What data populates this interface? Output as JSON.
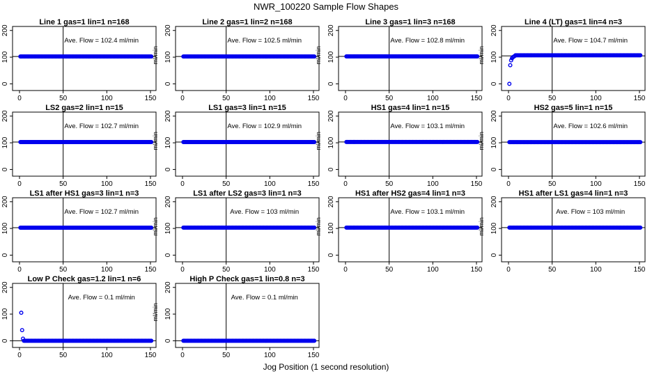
{
  "title": "NWR_100220  Sample Flow Shapes",
  "xlabel": "Jog Position (1 second resolution)",
  "chart_data": [
    {
      "type": "scatter",
      "title": "Line 1 gas=1 lin=1 n=168",
      "ylabel": "ml/min",
      "annotation": "Ave. Flow =  102.4  ml/min",
      "xlim": [
        0,
        150
      ],
      "ylim": [
        -25,
        215
      ],
      "xticks": [
        0,
        50,
        100,
        150
      ],
      "yticks": [
        0,
        100,
        200
      ],
      "vline": 50,
      "hline": 102.4,
      "start_points": [],
      "flat": {
        "from": 1,
        "to": 151,
        "y": 102.4
      }
    },
    {
      "type": "scatter",
      "title": "Line 2 gas=1 lin=2 n=168",
      "ylabel": "ml/min",
      "annotation": "Ave. Flow =  102.5  ml/min",
      "xlim": [
        0,
        150
      ],
      "ylim": [
        -25,
        215
      ],
      "xticks": [
        0,
        50,
        100,
        150
      ],
      "yticks": [
        0,
        100,
        200
      ],
      "vline": 50,
      "hline": 102.5,
      "start_points": [],
      "flat": {
        "from": 1,
        "to": 151,
        "y": 102.5
      }
    },
    {
      "type": "scatter",
      "title": "Line 3 gas=1 lin=3 n=168",
      "ylabel": "ml/min",
      "annotation": "Ave. Flow =  102.8  ml/min",
      "xlim": [
        0,
        150
      ],
      "ylim": [
        -25,
        215
      ],
      "xticks": [
        0,
        50,
        100,
        150
      ],
      "yticks": [
        0,
        100,
        200
      ],
      "vline": 50,
      "hline": 102.8,
      "start_points": [],
      "flat": {
        "from": 1,
        "to": 151,
        "y": 102.8
      }
    },
    {
      "type": "scatter",
      "title": "Line 4 (LT) gas=1 lin=4 n=3",
      "ylabel": "ml/min",
      "annotation": "Ave. Flow =  104.7  ml/min",
      "xlim": [
        0,
        150
      ],
      "ylim": [
        -25,
        215
      ],
      "xticks": [
        0,
        50,
        100,
        150
      ],
      "yticks": [
        0,
        100,
        200
      ],
      "vline": 50,
      "hline": 104.7,
      "start_points": [
        [
          1,
          0
        ],
        [
          2,
          70
        ],
        [
          3,
          88
        ],
        [
          4,
          96
        ],
        [
          5,
          100
        ],
        [
          6,
          102
        ],
        [
          7,
          104
        ]
      ],
      "flat": {
        "from": 8,
        "to": 151,
        "y": 107
      }
    },
    {
      "type": "scatter",
      "title": "LS2 gas=2 lin=1 n=15",
      "ylabel": "ml/min",
      "annotation": "Ave. Flow =  102.7  ml/min",
      "xlim": [
        0,
        150
      ],
      "ylim": [
        -25,
        215
      ],
      "xticks": [
        0,
        50,
        100,
        150
      ],
      "yticks": [
        0,
        100,
        200
      ],
      "vline": 50,
      "hline": 102.7,
      "start_points": [],
      "flat": {
        "from": 1,
        "to": 151,
        "y": 102.7
      }
    },
    {
      "type": "scatter",
      "title": "LS1 gas=3 lin=1 n=15",
      "ylabel": "ml/min",
      "annotation": "Ave. Flow =  102.9  ml/min",
      "xlim": [
        0,
        150
      ],
      "ylim": [
        -25,
        215
      ],
      "xticks": [
        0,
        50,
        100,
        150
      ],
      "yticks": [
        0,
        100,
        200
      ],
      "vline": 50,
      "hline": 102.9,
      "start_points": [],
      "flat": {
        "from": 1,
        "to": 151,
        "y": 102.9
      }
    },
    {
      "type": "scatter",
      "title": "HS1 gas=4 lin=1 n=15",
      "ylabel": "ml/min",
      "annotation": "Ave. Flow =  103.1  ml/min",
      "xlim": [
        0,
        150
      ],
      "ylim": [
        -25,
        215
      ],
      "xticks": [
        0,
        50,
        100,
        150
      ],
      "yticks": [
        0,
        100,
        200
      ],
      "vline": 50,
      "hline": 103.1,
      "start_points": [],
      "flat": {
        "from": 1,
        "to": 151,
        "y": 103.1
      }
    },
    {
      "type": "scatter",
      "title": "HS2 gas=5 lin=1 n=15",
      "ylabel": "ml/min",
      "annotation": "Ave. Flow =  102.6  ml/min",
      "xlim": [
        0,
        150
      ],
      "ylim": [
        -25,
        215
      ],
      "xticks": [
        0,
        50,
        100,
        150
      ],
      "yticks": [
        0,
        100,
        200
      ],
      "vline": 50,
      "hline": 102.6,
      "start_points": [],
      "flat": {
        "from": 1,
        "to": 151,
        "y": 102.6
      }
    },
    {
      "type": "scatter",
      "title": "LS1 after HS1 gas=3 lin=1 n=3",
      "ylabel": "ml/min",
      "annotation": "Ave. Flow =  102.7  ml/min",
      "xlim": [
        0,
        150
      ],
      "ylim": [
        -25,
        215
      ],
      "xticks": [
        0,
        50,
        100,
        150
      ],
      "yticks": [
        0,
        100,
        200
      ],
      "vline": 50,
      "hline": 102.7,
      "start_points": [],
      "flat": {
        "from": 1,
        "to": 151,
        "y": 102.7
      }
    },
    {
      "type": "scatter",
      "title": "LS1 after LS2 gas=3 lin=1 n=3",
      "ylabel": "ml/min",
      "annotation": "Ave. Flow =  103  ml/min",
      "xlim": [
        0,
        150
      ],
      "ylim": [
        -25,
        215
      ],
      "xticks": [
        0,
        50,
        100,
        150
      ],
      "yticks": [
        0,
        100,
        200
      ],
      "vline": 50,
      "hline": 103,
      "start_points": [],
      "flat": {
        "from": 1,
        "to": 151,
        "y": 103
      }
    },
    {
      "type": "scatter",
      "title": "HS1 after HS2 gas=4 lin=1 n=3",
      "ylabel": "ml/min",
      "annotation": "Ave. Flow =  103.1  ml/min",
      "xlim": [
        0,
        150
      ],
      "ylim": [
        -25,
        215
      ],
      "xticks": [
        0,
        50,
        100,
        150
      ],
      "yticks": [
        0,
        100,
        200
      ],
      "vline": 50,
      "hline": 103.1,
      "start_points": [],
      "flat": {
        "from": 1,
        "to": 151,
        "y": 103.1
      }
    },
    {
      "type": "scatter",
      "title": "HS1 after LS1 gas=4 lin=1 n=3",
      "ylabel": "ml/min",
      "annotation": "Ave. Flow =  103  ml/min",
      "xlim": [
        0,
        150
      ],
      "ylim": [
        -25,
        215
      ],
      "xticks": [
        0,
        50,
        100,
        150
      ],
      "yticks": [
        0,
        100,
        200
      ],
      "vline": 50,
      "hline": 103,
      "start_points": [],
      "flat": {
        "from": 1,
        "to": 151,
        "y": 103
      }
    },
    {
      "type": "scatter",
      "title": "Low P Check gas=1.2 lin=1 n=6",
      "ylabel": "ml/min",
      "annotation": "Ave. Flow =  0.1  ml/min",
      "xlim": [
        0,
        150
      ],
      "ylim": [
        -25,
        215
      ],
      "xticks": [
        0,
        50,
        100,
        150
      ],
      "yticks": [
        0,
        100,
        200
      ],
      "vline": 50,
      "hline": 0.1,
      "start_points": [
        [
          2,
          105
        ],
        [
          3,
          40
        ],
        [
          4,
          8
        ]
      ],
      "flat": {
        "from": 5,
        "to": 151,
        "y": 0.1
      }
    },
    {
      "type": "scatter",
      "title": "High P Check gas=1 lin=0.8 n=3",
      "ylabel": "ml/min",
      "annotation": "Ave. Flow =  0.1  ml/min",
      "xlim": [
        0,
        150
      ],
      "ylim": [
        -25,
        215
      ],
      "xticks": [
        0,
        50,
        100,
        150
      ],
      "yticks": [
        0,
        100,
        200
      ],
      "vline": 50,
      "hline": 0.1,
      "start_points": [],
      "flat": {
        "from": 1,
        "to": 151,
        "y": 0.1
      }
    }
  ],
  "colors": {
    "points": "#0000ee",
    "axes": "#000000"
  }
}
